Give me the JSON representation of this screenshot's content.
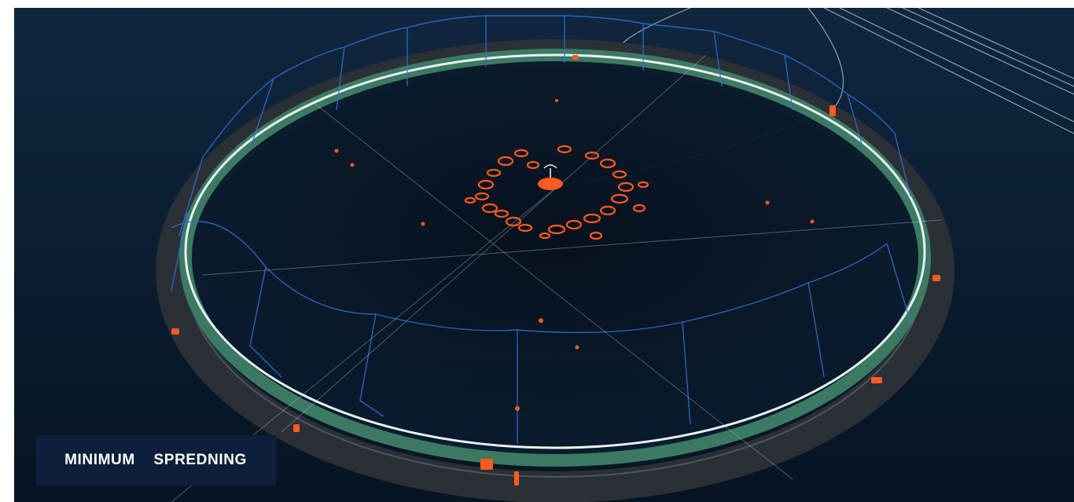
{
  "image": {
    "subject": "fish-farm-pen",
    "colors": {
      "water": "#0a1a2c",
      "ring": "#2b3036",
      "rim": "#e8f1f3",
      "net_wall": "#3f7f66",
      "rope": "#2e6fd6",
      "particles": "#ff5a1f",
      "buoy": "#ff5a1f"
    }
  },
  "caption": {
    "text": "MINIMUM  SPREDNING",
    "background": "#0d1f3a",
    "color": "#ffffff"
  }
}
